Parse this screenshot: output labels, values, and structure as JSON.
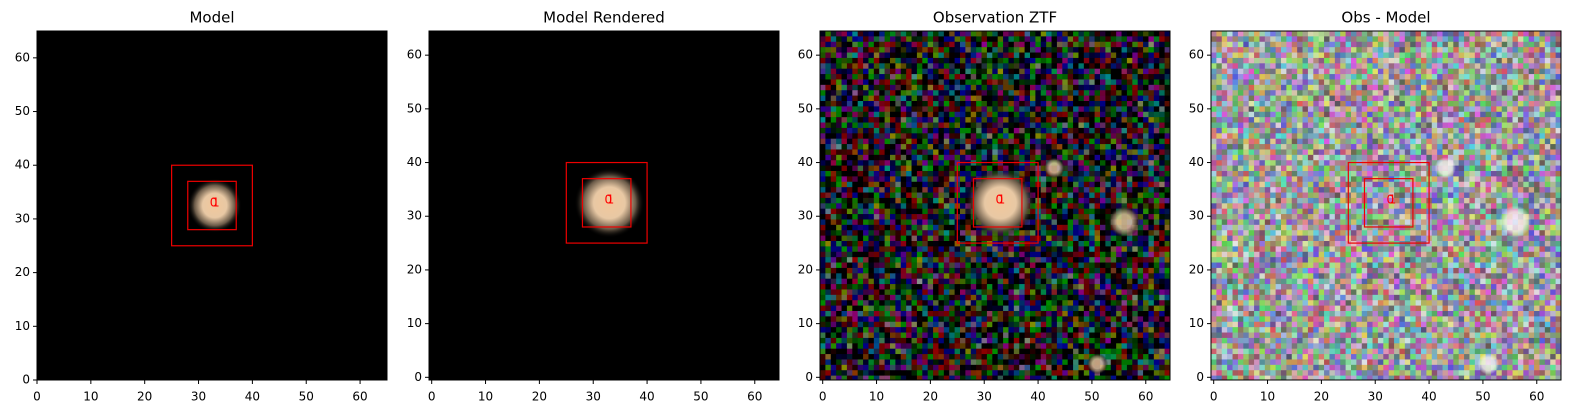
{
  "chart_data": [
    {
      "type": "image",
      "title": "Model",
      "xlim": [
        0,
        65
      ],
      "ylim": [
        0,
        65
      ],
      "xticks": [
        0,
        10,
        20,
        30,
        40,
        50,
        60
      ],
      "yticks": [
        0,
        10,
        20,
        30,
        40,
        50,
        60
      ],
      "boxes": [
        {
          "x": [
            25,
            40
          ],
          "y": [
            25,
            40
          ]
        },
        {
          "x": [
            28,
            37
          ],
          "y": [
            28,
            37
          ]
        }
      ],
      "annotations": [
        {
          "text": "1",
          "x": 33.2,
          "y": 33
        },
        {
          "text": "0",
          "x": 32.8,
          "y": 33
        }
      ]
    },
    {
      "type": "image",
      "title": "Model Rendered",
      "xlim": [
        -0.5,
        64.5
      ],
      "ylim": [
        -0.5,
        64.5
      ],
      "xticks": [
        0,
        10,
        20,
        30,
        40,
        50,
        60
      ],
      "yticks": [
        0,
        10,
        20,
        30,
        40,
        50,
        60
      ],
      "boxes": [
        {
          "x": [
            25,
            40
          ],
          "y": [
            25,
            40
          ]
        },
        {
          "x": [
            28,
            37
          ],
          "y": [
            28,
            37
          ]
        }
      ],
      "annotations": [
        {
          "text": "1",
          "x": 33.2,
          "y": 33
        },
        {
          "text": "0",
          "x": 32.8,
          "y": 33
        }
      ]
    },
    {
      "type": "image",
      "title": "Observation ZTF",
      "xlim": [
        -0.5,
        64.5
      ],
      "ylim": [
        -0.5,
        64.5
      ],
      "xticks": [
        0,
        10,
        20,
        30,
        40,
        50,
        60
      ],
      "yticks": [
        0,
        10,
        20,
        30,
        40,
        50,
        60
      ],
      "boxes": [
        {
          "x": [
            25,
            40
          ],
          "y": [
            25,
            40
          ]
        },
        {
          "x": [
            28,
            37
          ],
          "y": [
            28,
            37
          ]
        }
      ],
      "annotations": [
        {
          "text": "1",
          "x": 33.2,
          "y": 33
        },
        {
          "text": "0",
          "x": 32.8,
          "y": 33
        }
      ]
    },
    {
      "type": "image",
      "title": "Obs - Model",
      "xlim": [
        -0.5,
        64.5
      ],
      "ylim": [
        -0.5,
        64.5
      ],
      "xticks": [
        0,
        10,
        20,
        30,
        40,
        50,
        60
      ],
      "yticks": [
        0,
        10,
        20,
        30,
        40,
        50,
        60
      ],
      "boxes": [
        {
          "x": [
            25,
            40
          ],
          "y": [
            25,
            40
          ]
        },
        {
          "x": [
            28,
            37
          ],
          "y": [
            28,
            37
          ]
        }
      ],
      "annotations": [
        {
          "text": "1",
          "x": 33.2,
          "y": 33
        },
        {
          "text": "0",
          "x": 32.8,
          "y": 33
        }
      ]
    }
  ]
}
